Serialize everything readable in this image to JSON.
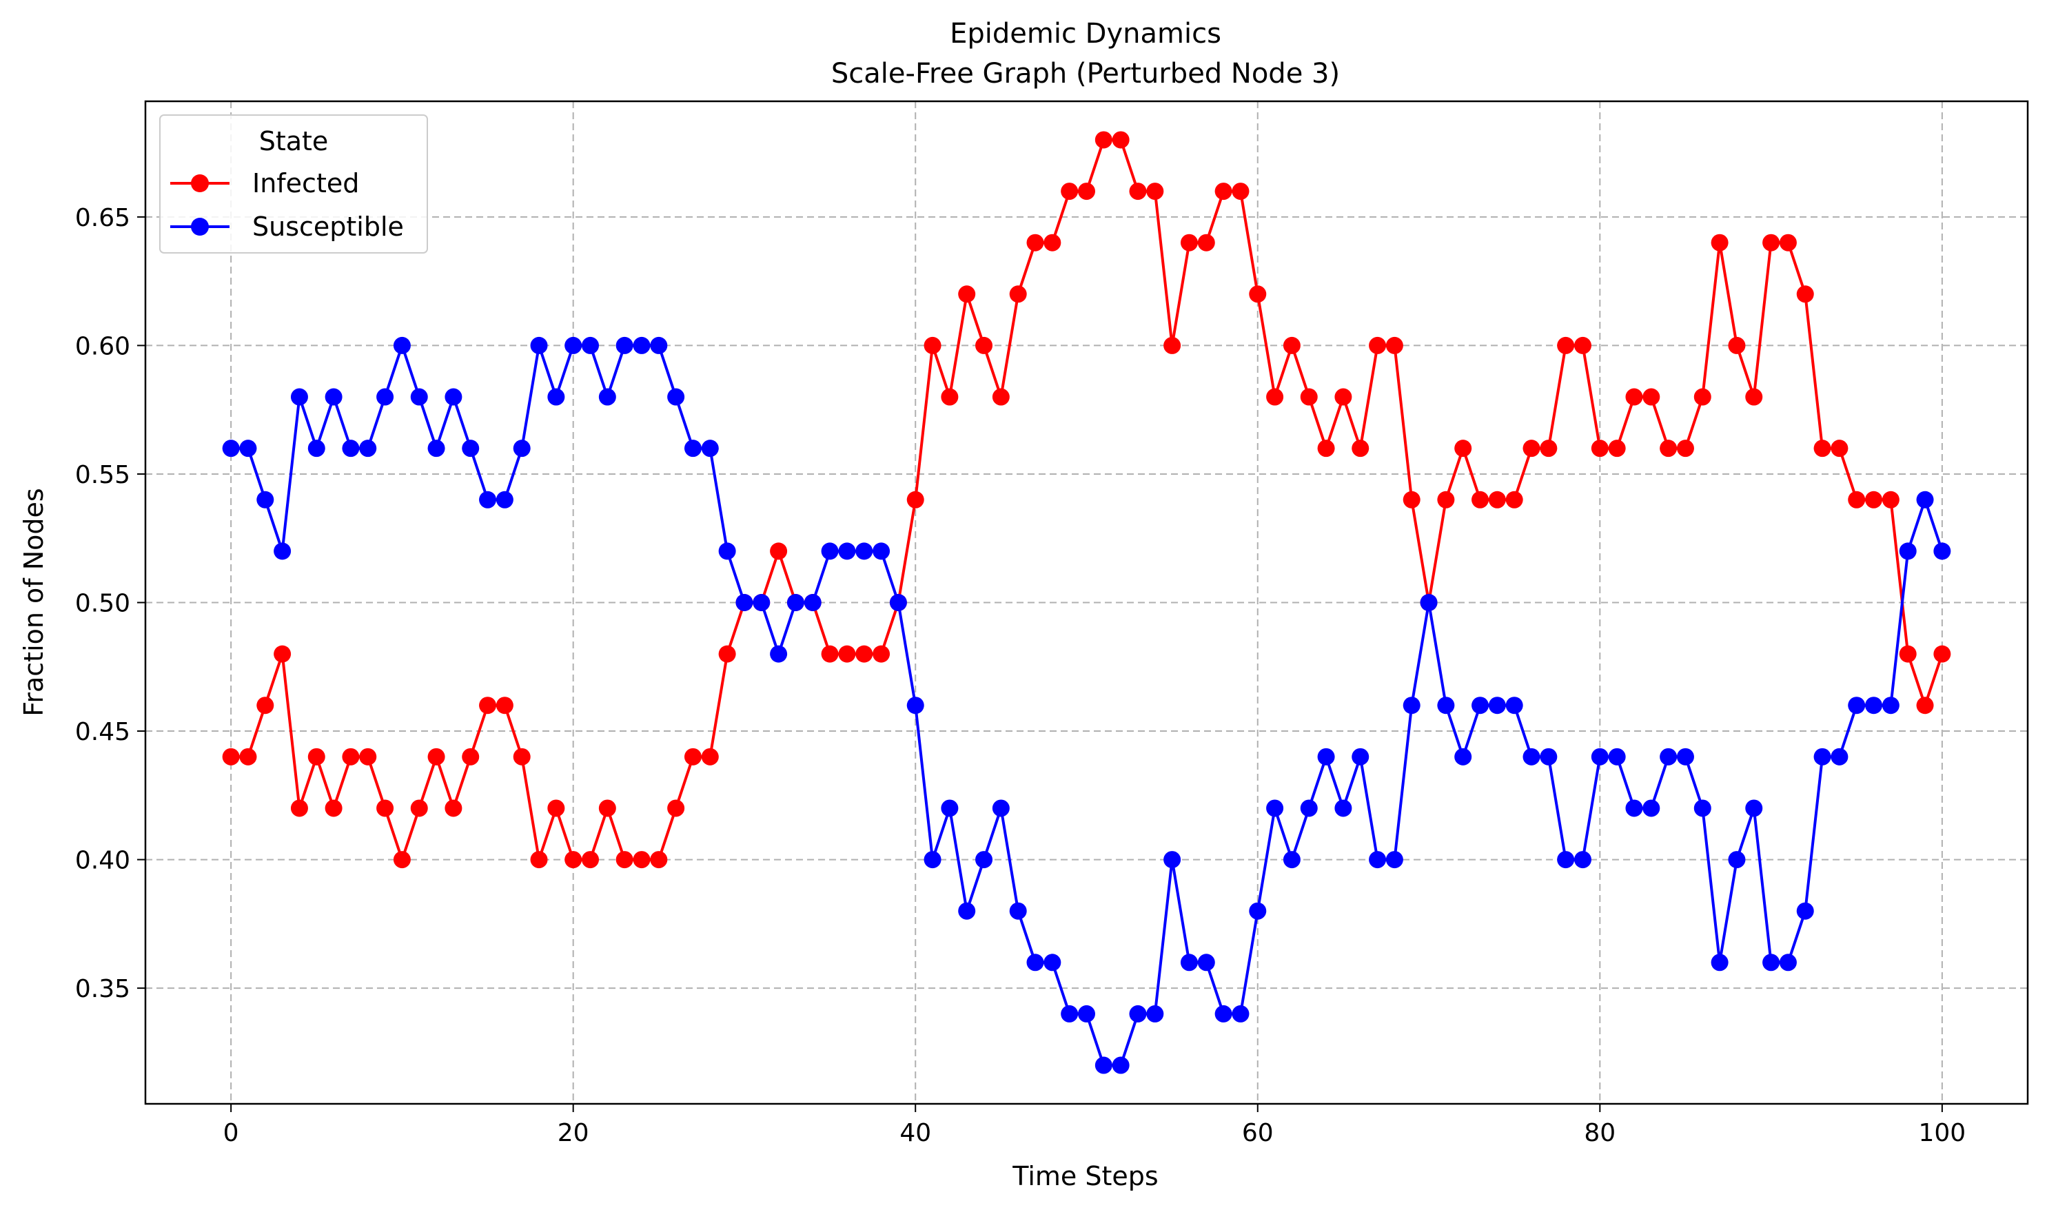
{
  "chart_data": {
    "type": "line",
    "title": "Epidemic Dynamics",
    "subtitle": "Scale-Free Graph (Perturbed Node 3)",
    "xlabel": "Time Steps",
    "ylabel": "Fraction of Nodes",
    "xlim": [
      -5,
      105
    ],
    "ylim": [
      0.305,
      0.695
    ],
    "x_ticks": [
      0,
      20,
      40,
      60,
      80,
      100
    ],
    "x_tick_labels": [
      "0",
      "20",
      "40",
      "60",
      "80",
      "100"
    ],
    "y_ticks": [
      0.35,
      0.4,
      0.45,
      0.5,
      0.55,
      0.6,
      0.65
    ],
    "y_tick_labels": [
      "0.35",
      "0.40",
      "0.45",
      "0.50",
      "0.55",
      "0.60",
      "0.65"
    ],
    "grid": true,
    "grid_style": "dashed",
    "legend": {
      "title": "State",
      "placement": "top-left"
    },
    "series": [
      {
        "name": "Infected",
        "color": "#ff0000",
        "marker": "circle",
        "values": [
          0.44,
          0.44,
          0.46,
          0.48,
          0.42,
          0.44,
          0.42,
          0.44,
          0.44,
          0.42,
          0.4,
          0.42,
          0.44,
          0.42,
          0.44,
          0.46,
          0.46,
          0.44,
          0.4,
          0.42,
          0.4,
          0.4,
          0.42,
          0.4,
          0.4,
          0.4,
          0.42,
          0.44,
          0.44,
          0.48,
          0.5,
          0.5,
          0.52,
          0.5,
          0.5,
          0.48,
          0.48,
          0.48,
          0.48,
          0.5,
          0.54,
          0.6,
          0.58,
          0.62,
          0.6,
          0.58,
          0.62,
          0.64,
          0.64,
          0.66,
          0.66,
          0.68,
          0.68,
          0.66,
          0.66,
          0.6,
          0.64,
          0.64,
          0.66,
          0.66,
          0.62,
          0.58,
          0.6,
          0.58,
          0.56,
          0.58,
          0.56,
          0.6,
          0.6,
          0.54,
          0.5,
          0.54,
          0.56,
          0.54,
          0.54,
          0.54,
          0.56,
          0.56,
          0.6,
          0.6,
          0.56,
          0.56,
          0.58,
          0.58,
          0.56,
          0.56,
          0.58,
          0.64,
          0.6,
          0.58,
          0.64,
          0.64,
          0.62,
          0.56,
          0.56,
          0.54,
          0.54,
          0.54,
          0.48,
          0.46,
          0.48
        ]
      },
      {
        "name": "Susceptible",
        "color": "#0000ff",
        "marker": "circle",
        "values": [
          0.56,
          0.56,
          0.54,
          0.52,
          0.58,
          0.56,
          0.58,
          0.56,
          0.56,
          0.58,
          0.6,
          0.58,
          0.56,
          0.58,
          0.56,
          0.54,
          0.54,
          0.56,
          0.6,
          0.58,
          0.6,
          0.6,
          0.58,
          0.6,
          0.6,
          0.6,
          0.58,
          0.56,
          0.56,
          0.52,
          0.5,
          0.5,
          0.48,
          0.5,
          0.5,
          0.52,
          0.52,
          0.52,
          0.52,
          0.5,
          0.46,
          0.4,
          0.42,
          0.38,
          0.4,
          0.42,
          0.38,
          0.36,
          0.36,
          0.34,
          0.34,
          0.32,
          0.32,
          0.34,
          0.34,
          0.4,
          0.36,
          0.36,
          0.34,
          0.34,
          0.38,
          0.42,
          0.4,
          0.42,
          0.44,
          0.42,
          0.44,
          0.4,
          0.4,
          0.46,
          0.5,
          0.46,
          0.44,
          0.46,
          0.46,
          0.46,
          0.44,
          0.44,
          0.4,
          0.4,
          0.44,
          0.44,
          0.42,
          0.42,
          0.44,
          0.44,
          0.42,
          0.36,
          0.4,
          0.42,
          0.36,
          0.36,
          0.38,
          0.44,
          0.44,
          0.46,
          0.46,
          0.46,
          0.52,
          0.54,
          0.52
        ]
      }
    ]
  }
}
